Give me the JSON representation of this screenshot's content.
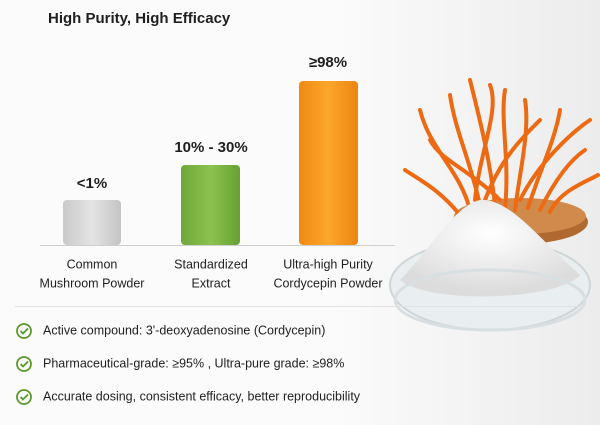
{
  "title": "High Purity, High Efficacy",
  "bars": [
    {
      "label": "<1%",
      "name_lines": [
        "Common",
        "Mushroom Powder"
      ]
    },
    {
      "label": "10% - 30%",
      "name_lines": [
        "Standardized",
        "Extract"
      ]
    },
    {
      "label": "≥98%",
      "name_lines": [
        "Ultra-high Purity",
        "Cordycepin Powder"
      ]
    }
  ],
  "points": [
    "Active compound: 3'-deoxyadenosine (Cordycepin)",
    "Pharmaceutical-grade: ≥95% , Ultra-pure grade: ≥98%",
    "Accurate dosing, consistent efficacy, better reproducibility"
  ]
}
